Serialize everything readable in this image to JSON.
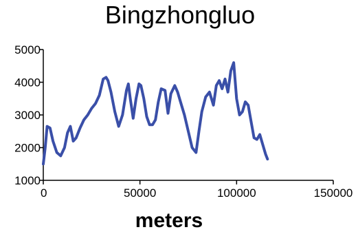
{
  "chart_data": {
    "type": "line",
    "title": "Bingzhongluo",
    "xlabel": "meters",
    "ylabel": "",
    "xlim": [
      0,
      150000
    ],
    "ylim": [
      1000,
      5000
    ],
    "x_ticks": [
      "0",
      "50000",
      "100000",
      "150000"
    ],
    "y_ticks": [
      "1000",
      "2000",
      "3000",
      "4000",
      "5000"
    ],
    "x_tick_values": [
      0,
      50000,
      100000,
      150000
    ],
    "y_tick_values": [
      1000,
      2000,
      3000,
      4000,
      5000
    ],
    "grid": false,
    "line_color": "#3a4fa8",
    "series": [
      {
        "x": [
          0,
          1000,
          2000,
          3500,
          5000,
          7000,
          9000,
          11000,
          12500,
          14000,
          15500,
          17000,
          19000,
          21000,
          23000,
          25000,
          27000,
          29000,
          31000,
          32500,
          33500,
          35000,
          37000,
          39000,
          41000,
          43000,
          44000,
          45000,
          46500,
          48000,
          49500,
          50500,
          52000,
          53500,
          55000,
          56500,
          58000,
          59500,
          61000,
          63000,
          64500,
          66000,
          68000,
          69500,
          71000,
          73000,
          75000,
          77000,
          79000,
          80500,
          82000,
          84000,
          86000,
          88000,
          89500,
          91000,
          92500,
          94000,
          95500,
          97000,
          98500,
          100000,
          101500,
          103000,
          104500,
          106000,
          107500,
          109000,
          110500,
          112000,
          113500,
          115000,
          116000
        ],
        "y": [
          1500,
          2000,
          2650,
          2600,
          2200,
          1850,
          1750,
          2000,
          2450,
          2650,
          2200,
          2300,
          2600,
          2850,
          3000,
          3200,
          3350,
          3600,
          4100,
          4150,
          4050,
          3700,
          3100,
          2650,
          3000,
          3750,
          3950,
          3500,
          2900,
          3500,
          3950,
          3900,
          3500,
          2950,
          2700,
          2700,
          2850,
          3400,
          3800,
          3750,
          3050,
          3650,
          3900,
          3700,
          3400,
          3000,
          2500,
          2000,
          1850,
          2500,
          3100,
          3550,
          3700,
          3300,
          3900,
          4050,
          3800,
          4100,
          3700,
          4350,
          4600,
          3500,
          3000,
          3100,
          3400,
          3300,
          2800,
          2300,
          2250,
          2400,
          2100,
          1800,
          1650
        ]
      }
    ]
  }
}
